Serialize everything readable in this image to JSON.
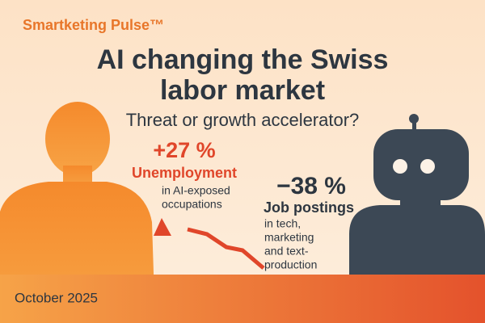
{
  "brand": "Smartketing Pulse™",
  "headline": {
    "lines": [
      "AI changing the Swiss",
      "labor market"
    ],
    "subtitle": "Threat or growth accelerator?"
  },
  "stats": [
    {
      "figure": "+27 %",
      "label": "Unemployment",
      "description": [
        "in AI-exposed",
        "occupations"
      ]
    },
    {
      "figure": "−38 %",
      "label": "Job postings",
      "description": [
        "in tech,",
        "marketing",
        "and text-",
        "production"
      ]
    }
  ],
  "date": "October 2025"
}
